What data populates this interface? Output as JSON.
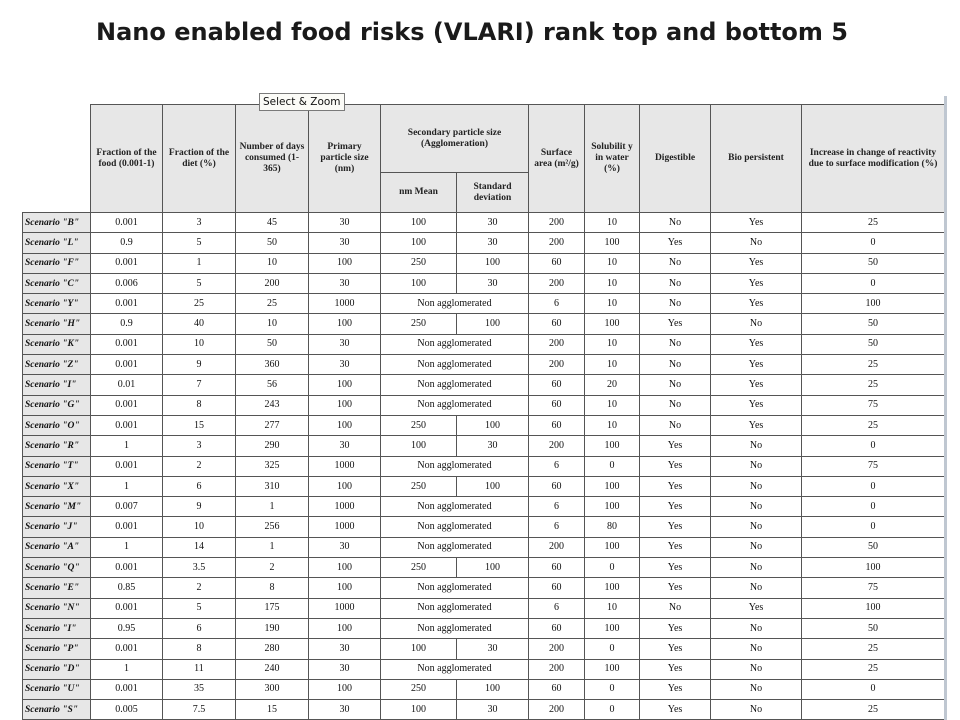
{
  "title": "Nano enabled food risks (VLARI) rank top and bottom 5",
  "tooltip": "Select & Zoom",
  "headers": {
    "fraction_food": "Fraction of the food (0.001-1)",
    "fraction_diet": "Fraction of the diet (%)",
    "days": "Number of days consumed (1-365)",
    "primary_size": "Primary particle size (nm)",
    "secondary_size": "Secondary particle size (Agglomeration)",
    "nm_mean": "nm Mean",
    "std_dev": "Standard deviation",
    "surface_area": "Surface area (m²/g)",
    "solubility": "Solubilit y in water (%)",
    "digestible": "Digestible",
    "bio_persistent": "Bio persistent",
    "reactivity": "Increase in change of reactivity due to surface modification (%)"
  },
  "rows": [
    {
      "label": "Scenario \"B\"",
      "food": "0.001",
      "diet": "3",
      "days": "45",
      "primary": "30",
      "mean": "100",
      "std": "30",
      "surface": "200",
      "sol": "10",
      "dig": "No",
      "bio": "Yes",
      "react": "25"
    },
    {
      "label": "Scenario \"L\"",
      "food": "0.9",
      "diet": "5",
      "days": "50",
      "primary": "30",
      "mean": "100",
      "std": "30",
      "surface": "200",
      "sol": "100",
      "dig": "Yes",
      "bio": "No",
      "react": "0"
    },
    {
      "label": "Scenario \"F\"",
      "food": "0.001",
      "diet": "1",
      "days": "10",
      "primary": "100",
      "mean": "250",
      "std": "100",
      "surface": "60",
      "sol": "10",
      "dig": "No",
      "bio": "Yes",
      "react": "50"
    },
    {
      "label": "Scenario \"C\"",
      "food": "0.006",
      "diet": "5",
      "days": "200",
      "primary": "30",
      "mean": "100",
      "std": "30",
      "surface": "200",
      "sol": "10",
      "dig": "No",
      "bio": "Yes",
      "react": "0"
    },
    {
      "label": "Scenario \"Y\"",
      "food": "0.001",
      "diet": "25",
      "days": "25",
      "primary": "1000",
      "agg": "Non agglomerated",
      "surface": "6",
      "sol": "10",
      "dig": "No",
      "bio": "Yes",
      "react": "100"
    },
    {
      "label": "Scenario \"H\"",
      "food": "0.9",
      "diet": "40",
      "days": "10",
      "primary": "100",
      "mean": "250",
      "std": "100",
      "surface": "60",
      "sol": "100",
      "dig": "Yes",
      "bio": "No",
      "react": "50"
    },
    {
      "label": "Scenario \"K\"",
      "food": "0.001",
      "diet": "10",
      "days": "50",
      "primary": "30",
      "agg": "Non agglomerated",
      "surface": "200",
      "sol": "10",
      "dig": "No",
      "bio": "Yes",
      "react": "50"
    },
    {
      "label": "Scenario \"Z\"",
      "food": "0.001",
      "diet": "9",
      "days": "360",
      "primary": "30",
      "agg": "Non agglomerated",
      "surface": "200",
      "sol": "10",
      "dig": "No",
      "bio": "Yes",
      "react": "25"
    },
    {
      "label": "Scenario \"I\"",
      "food": "0.01",
      "diet": "7",
      "days": "56",
      "primary": "100",
      "agg": "Non agglomerated",
      "surface": "60",
      "sol": "20",
      "dig": "No",
      "bio": "Yes",
      "react": "25"
    },
    {
      "label": "Scenario \"G\"",
      "food": "0.001",
      "diet": "8",
      "days": "243",
      "primary": "100",
      "agg": "Non agglomerated",
      "surface": "60",
      "sol": "10",
      "dig": "No",
      "bio": "Yes",
      "react": "75"
    },
    {
      "label": "Scenario \"O\"",
      "food": "0.001",
      "diet": "15",
      "days": "277",
      "primary": "100",
      "mean": "250",
      "std": "100",
      "surface": "60",
      "sol": "10",
      "dig": "No",
      "bio": "Yes",
      "react": "25"
    },
    {
      "label": "Scenario \"R\"",
      "food": "1",
      "diet": "3",
      "days": "290",
      "primary": "30",
      "mean": "100",
      "std": "30",
      "surface": "200",
      "sol": "100",
      "dig": "Yes",
      "bio": "No",
      "react": "0"
    },
    {
      "label": "Scenario \"T\"",
      "food": "0.001",
      "diet": "2",
      "days": "325",
      "primary": "1000",
      "agg": "Non agglomerated",
      "surface": "6",
      "sol": "0",
      "dig": "Yes",
      "bio": "No",
      "react": "75"
    },
    {
      "label": "Scenario \"X\"",
      "food": "1",
      "diet": "6",
      "days": "310",
      "primary": "100",
      "mean": "250",
      "std": "100",
      "surface": "60",
      "sol": "100",
      "dig": "Yes",
      "bio": "No",
      "react": "0"
    },
    {
      "label": "Scenario \"M\"",
      "food": "0.007",
      "diet": "9",
      "days": "1",
      "primary": "1000",
      "agg": "Non agglomerated",
      "surface": "6",
      "sol": "100",
      "dig": "Yes",
      "bio": "No",
      "react": "0"
    },
    {
      "label": "Scenario \"J\"",
      "food": "0.001",
      "diet": "10",
      "days": "256",
      "primary": "1000",
      "agg": "Non agglomerated",
      "surface": "6",
      "sol": "80",
      "dig": "Yes",
      "bio": "No",
      "react": "0"
    },
    {
      "label": "Scenario \"A\"",
      "food": "1",
      "diet": "14",
      "days": "1",
      "primary": "30",
      "agg": "Non agglomerated",
      "surface": "200",
      "sol": "100",
      "dig": "Yes",
      "bio": "No",
      "react": "50"
    },
    {
      "label": "Scenario \"Q\"",
      "food": "0.001",
      "diet": "3.5",
      "days": "2",
      "primary": "100",
      "mean": "250",
      "std": "100",
      "surface": "60",
      "sol": "0",
      "dig": "Yes",
      "bio": "No",
      "react": "100"
    },
    {
      "label": "Scenario \"E\"",
      "food": "0.85",
      "diet": "2",
      "days": "8",
      "primary": "100",
      "agg": "Non agglomerated",
      "surface": "60",
      "sol": "100",
      "dig": "Yes",
      "bio": "No",
      "react": "75"
    },
    {
      "label": "Scenario \"N\"",
      "food": "0.001",
      "diet": "5",
      "days": "175",
      "primary": "1000",
      "agg": "Non agglomerated",
      "surface": "6",
      "sol": "10",
      "dig": "No",
      "bio": "Yes",
      "react": "100"
    },
    {
      "label": "Scenario \"I\"",
      "food": "0.95",
      "diet": "6",
      "days": "190",
      "primary": "100",
      "agg": "Non agglomerated",
      "surface": "60",
      "sol": "100",
      "dig": "Yes",
      "bio": "No",
      "react": "50"
    },
    {
      "label": "Scenario \"P\"",
      "food": "0.001",
      "diet": "8",
      "days": "280",
      "primary": "30",
      "mean": "100",
      "std": "30",
      "surface": "200",
      "sol": "0",
      "dig": "Yes",
      "bio": "No",
      "react": "25"
    },
    {
      "label": "Scenario \"D\"",
      "food": "1",
      "diet": "11",
      "days": "240",
      "primary": "30",
      "agg": "Non agglomerated",
      "surface": "200",
      "sol": "100",
      "dig": "Yes",
      "bio": "No",
      "react": "25"
    },
    {
      "label": "Scenario \"U\"",
      "food": "0.001",
      "diet": "35",
      "days": "300",
      "primary": "100",
      "mean": "250",
      "std": "100",
      "surface": "60",
      "sol": "0",
      "dig": "Yes",
      "bio": "No",
      "react": "0"
    },
    {
      "label": "Scenario \"S\"",
      "food": "0.005",
      "diet": "7.5",
      "days": "15",
      "primary": "30",
      "mean": "100",
      "std": "30",
      "surface": "200",
      "sol": "0",
      "dig": "Yes",
      "bio": "No",
      "react": "25"
    }
  ]
}
